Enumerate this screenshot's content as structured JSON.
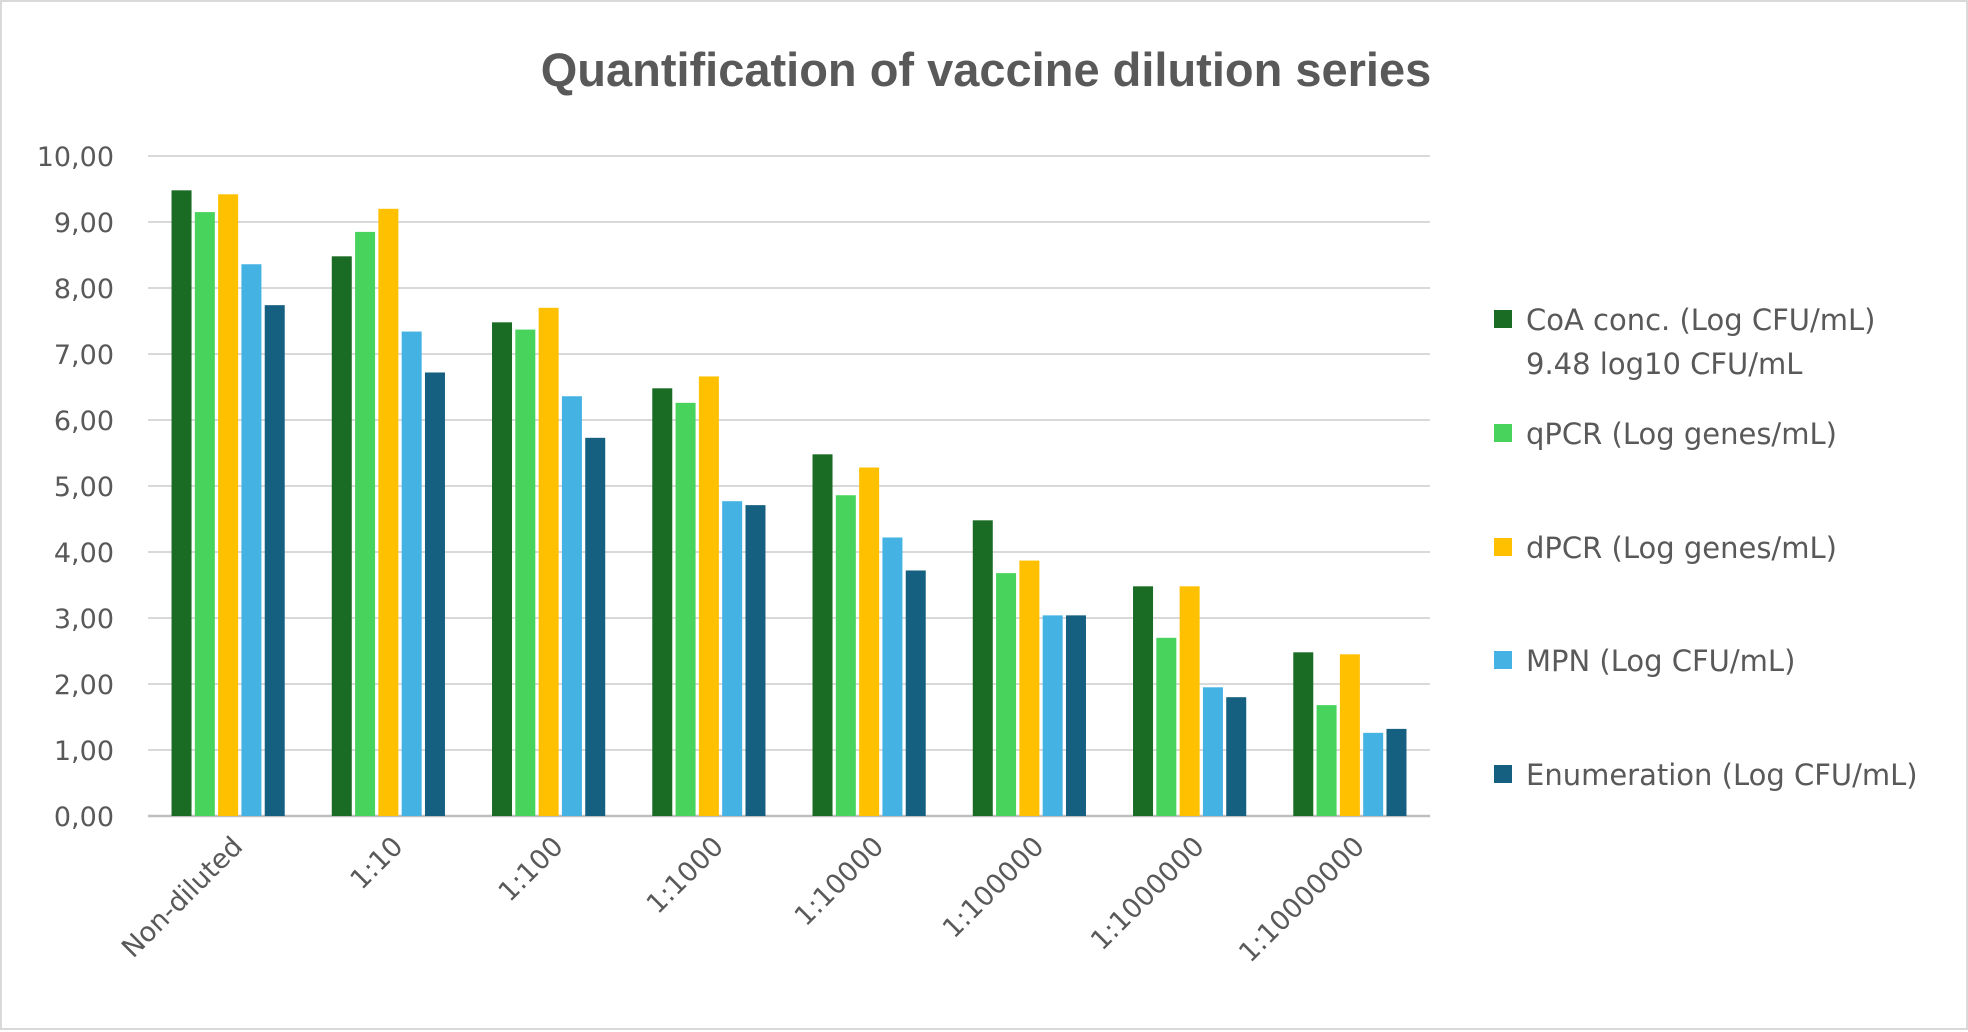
{
  "chart_data": {
    "type": "bar",
    "title": "Quantification of vaccine dilution series",
    "xlabel": "",
    "ylabel": "",
    "ylim": [
      0,
      10
    ],
    "yticks": [
      "0,00",
      "1,00",
      "2,00",
      "3,00",
      "4,00",
      "5,00",
      "6,00",
      "7,00",
      "8,00",
      "9,00",
      "10,00"
    ],
    "grid": true,
    "legend_position": "right",
    "categories": [
      "Non-diluted",
      "1:10",
      "1:100",
      "1:1000",
      "1:10000",
      "1:100000",
      "1:1000000",
      "1:10000000"
    ],
    "series": [
      {
        "name": "CoA conc. (Log CFU/mL)",
        "name_line2": "9.48 log10 CFU/mL",
        "color": "#1a6b24",
        "values": [
          9.48,
          8.48,
          7.48,
          6.48,
          5.48,
          4.48,
          3.48,
          2.48
        ]
      },
      {
        "name": "qPCR (Log genes/mL)",
        "color": "#48d35c",
        "values": [
          9.15,
          8.85,
          7.37,
          6.26,
          4.86,
          3.68,
          2.7,
          1.68
        ]
      },
      {
        "name": "dPCR (Log genes/mL)",
        "color": "#ffc000",
        "values": [
          9.42,
          9.2,
          7.7,
          6.66,
          5.28,
          3.87,
          3.48,
          2.45
        ]
      },
      {
        "name": "MPN (Log CFU/mL)",
        "color": "#45b2e4",
        "values": [
          8.36,
          7.34,
          6.36,
          4.77,
          4.22,
          3.04,
          1.95,
          1.26
        ]
      },
      {
        "name": "Enumeration (Log CFU/mL)",
        "color": "#155f80",
        "values": [
          7.74,
          6.72,
          5.73,
          4.71,
          3.72,
          3.04,
          1.8,
          1.32
        ]
      }
    ]
  }
}
